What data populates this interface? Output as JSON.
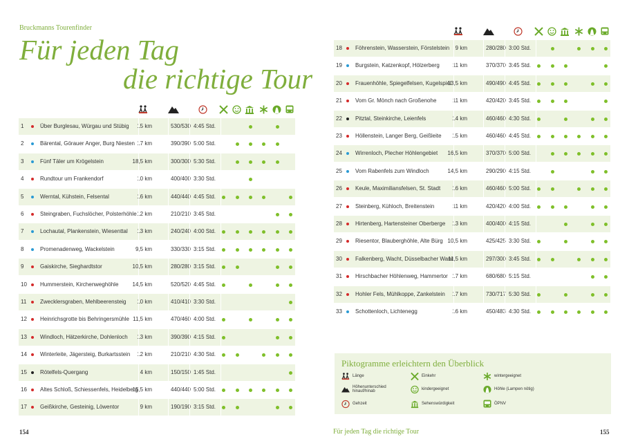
{
  "header": {
    "book": "Bruckmanns Tourenfinder",
    "title_line1": "Für jeden Tag",
    "title_line2": "die richtige Tour"
  },
  "icons": [
    "hiker-icon",
    "mountain-icon",
    "clock-icon",
    "cutlery-icon",
    "smiley-icon",
    "landmark-icon",
    "snowflake-icon",
    "cave-icon",
    "bus-icon"
  ],
  "colors": {
    "accent": "#7fae3c",
    "dot": "#7fbf2a",
    "red": "#d42a2a",
    "blue": "#2a9ad4",
    "black": "#222222",
    "row_alt": "#eef4e2"
  },
  "tours": [
    {
      "nr": "1",
      "color": "red",
      "name": "Über Burglesau, Würgau und Stübig",
      "len": "15 km",
      "hm": "530/530",
      "time": "4:45 Std.",
      "f": [
        0,
        0,
        1,
        0,
        1,
        0
      ]
    },
    {
      "nr": "2",
      "color": "blue",
      "name": "Bärental, Görauer Anger, Burg Niesten",
      "len": "17 km",
      "hm": "390/390",
      "time": "5:00 Std.",
      "f": [
        0,
        1,
        1,
        1,
        1,
        0
      ]
    },
    {
      "nr": "3",
      "color": "blue",
      "name": "Fünf Täler um Krögelstein",
      "len": "18,5 km",
      "hm": "300/300",
      "time": "5:30 Std.",
      "f": [
        0,
        1,
        1,
        1,
        1,
        0
      ]
    },
    {
      "nr": "4",
      "color": "red",
      "name": "Rundtour um Frankendorf",
      "len": "10 km",
      "hm": "400/400",
      "time": "3:30 Std.",
      "f": [
        0,
        0,
        1,
        0,
        0,
        0
      ]
    },
    {
      "nr": "5",
      "color": "blue",
      "name": "Werntal, Kühstein, Felsental",
      "len": "16 km",
      "hm": "440/440",
      "time": "4:45 Std.",
      "f": [
        1,
        1,
        1,
        1,
        0,
        1
      ]
    },
    {
      "nr": "6",
      "color": "red",
      "name": "Steingraben, Fuchslöcher, Polsterhöhle",
      "len": "12 km",
      "hm": "210/210",
      "time": "3:45 Std.",
      "f": [
        0,
        0,
        0,
        0,
        1,
        1
      ]
    },
    {
      "nr": "7",
      "color": "blue",
      "name": "Lochautal, Plankenstein, Wiesenttal",
      "len": "13 km",
      "hm": "240/240",
      "time": "4:00 Std.",
      "f": [
        1,
        1,
        1,
        1,
        1,
        1
      ]
    },
    {
      "nr": "8",
      "color": "blue",
      "name": "Promenadenweg, Wackelstein",
      "len": "9,5 km",
      "hm": "330/330",
      "time": "3:15 Std.",
      "f": [
        1,
        1,
        1,
        1,
        1,
        1
      ]
    },
    {
      "nr": "9",
      "color": "red",
      "name": "Gaiskirche, Sieghardtstor",
      "len": "10,5 km",
      "hm": "280/280",
      "time": "3:15 Std.",
      "f": [
        1,
        1,
        0,
        0,
        1,
        1
      ]
    },
    {
      "nr": "10",
      "color": "red",
      "name": "Hummerstein, Kirchenweghöhle",
      "len": "14,5 km",
      "hm": "520/520",
      "time": "4:45 Std.",
      "f": [
        1,
        0,
        1,
        0,
        1,
        1
      ]
    },
    {
      "nr": "11",
      "color": "red",
      "name": "Zwecklersgraben, Mehlbeerensteig",
      "len": "10 km",
      "hm": "410/410",
      "time": "3:30 Std.",
      "f": [
        0,
        0,
        0,
        0,
        0,
        1
      ]
    },
    {
      "nr": "12",
      "color": "red",
      "name": "Heinrichsgrotte bis Behringersmühle",
      "len": "11,5 km",
      "hm": "470/460",
      "time": "4:00 Std.",
      "f": [
        1,
        0,
        1,
        0,
        1,
        1
      ]
    },
    {
      "nr": "13",
      "color": "red",
      "name": "Windloch, Hätzerkirche, Dohlenloch",
      "len": "13 km",
      "hm": "390/390",
      "time": "4:15 Std.",
      "f": [
        1,
        0,
        0,
        0,
        1,
        1
      ]
    },
    {
      "nr": "14",
      "color": "red",
      "name": "Winterleite, Jägersteig, Burkartsstein",
      "len": "12 km",
      "hm": "210/210",
      "time": "4:30 Std.",
      "f": [
        1,
        1,
        0,
        1,
        1,
        1
      ]
    },
    {
      "nr": "15",
      "color": "black",
      "name": "Rötelfels-Quergang",
      "len": "4 km",
      "hm": "150/150",
      "time": "1:45 Std.",
      "f": [
        0,
        0,
        0,
        0,
        0,
        1
      ]
    },
    {
      "nr": "16",
      "color": "red",
      "name": "Altes Schloß, Schiessenfels, Heidelberg",
      "len": "15,5 km",
      "hm": "440/440",
      "time": "5:00 Std.",
      "f": [
        1,
        1,
        1,
        1,
        1,
        1
      ]
    },
    {
      "nr": "17",
      "color": "red",
      "name": "Geißkirche, Gesteinig, Löwentor",
      "len": "9 km",
      "hm": "190/190",
      "time": "3:15 Std.",
      "f": [
        1,
        1,
        0,
        0,
        1,
        1
      ]
    },
    {
      "nr": "18",
      "color": "red",
      "name": "Föhrenstein, Wasserstein, Förstelstein",
      "len": "9 km",
      "hm": "280/280",
      "time": "3:00 Std.",
      "f": [
        0,
        1,
        0,
        1,
        1,
        1
      ]
    },
    {
      "nr": "19",
      "color": "blue",
      "name": "Burgstein, Katzenkopf, Hölzerberg",
      "len": "11 km",
      "hm": "370/370",
      "time": "3:45 Std.",
      "f": [
        1,
        1,
        1,
        0,
        0,
        1
      ]
    },
    {
      "nr": "20",
      "color": "red",
      "name": "Frauenhöhle, Spiegelfelsen, Kugelspiel",
      "len": "13,5 km",
      "hm": "490/490",
      "time": "4:45 Std.",
      "f": [
        1,
        1,
        1,
        0,
        1,
        1
      ]
    },
    {
      "nr": "21",
      "color": "red",
      "name": "Vom Gr. Mönch nach Großenohe",
      "len": "11 km",
      "hm": "420/420",
      "time": "3:45 Std.",
      "f": [
        1,
        1,
        1,
        0,
        0,
        1
      ]
    },
    {
      "nr": "22",
      "color": "black",
      "name": "Pitztal, Steinkirche, Leienfels",
      "len": "14 km",
      "hm": "460/460",
      "time": "4:30 Std.",
      "f": [
        1,
        0,
        1,
        0,
        1,
        1
      ]
    },
    {
      "nr": "23",
      "color": "red",
      "name": "Höllenstein, Langer Berg, Geißleite",
      "len": "15 km",
      "hm": "460/460",
      "time": "4:45 Std.",
      "f": [
        1,
        1,
        1,
        1,
        1,
        1
      ]
    },
    {
      "nr": "24",
      "color": "blue",
      "name": "Wirrenloch, Plecher Höhlengebiet",
      "len": "16,5 km",
      "hm": "370/370",
      "time": "5:00 Std.",
      "f": [
        0,
        1,
        1,
        1,
        1,
        1
      ]
    },
    {
      "nr": "25",
      "color": "blue",
      "name": "Vom Rabenfels zum Windloch",
      "len": "14,5 km",
      "hm": "290/290",
      "time": "4:15 Std.",
      "f": [
        0,
        1,
        0,
        0,
        1,
        1
      ]
    },
    {
      "nr": "26",
      "color": "red",
      "name": "Keule, Maximiliansfelsen, St. Stadt",
      "len": "16 km",
      "hm": "460/460",
      "time": "5:00 Std.",
      "f": [
        1,
        1,
        0,
        1,
        1,
        1
      ]
    },
    {
      "nr": "27",
      "color": "red",
      "name": "Steinberg, Kühloch, Breitenstein",
      "len": "11 km",
      "hm": "420/420",
      "time": "4:00 Std.",
      "f": [
        1,
        1,
        1,
        0,
        1,
        1
      ]
    },
    {
      "nr": "28",
      "color": "red",
      "name": "Hirtenberg, Hartensteiner Oberberge",
      "len": "13 km",
      "hm": "400/400",
      "time": "4:15 Std.",
      "f": [
        0,
        0,
        1,
        0,
        1,
        1
      ]
    },
    {
      "nr": "29",
      "color": "red",
      "name": "Riesentor, Blauberghöhle, Alte Bürg",
      "len": "10,5 km",
      "hm": "425/425",
      "time": "3:30 Std.",
      "f": [
        1,
        0,
        1,
        0,
        1,
        1
      ]
    },
    {
      "nr": "30",
      "color": "red",
      "name": "Falkenberg, Wacht, Düsselbacher Wand",
      "len": "11,5 km",
      "hm": "297/300",
      "time": "3:45 Std.",
      "f": [
        1,
        1,
        0,
        1,
        1,
        1
      ]
    },
    {
      "nr": "31",
      "color": "red",
      "name": "Hirschbacher Höhlenweg, Hammertor",
      "len": "17 km",
      "hm": "680/680",
      "time": "5:15 Std.",
      "f": [
        0,
        0,
        0,
        0,
        1,
        1
      ]
    },
    {
      "nr": "32",
      "color": "red",
      "name": "Hohler Fels, Mühlkoppe, Zankelstein",
      "len": "17 km",
      "hm": "730/717",
      "time": "5:30 Std.",
      "f": [
        1,
        0,
        1,
        0,
        1,
        1
      ]
    },
    {
      "nr": "33",
      "color": "blue",
      "name": "Schottenloch, Lichtenegg",
      "len": "16 km",
      "hm": "450/483",
      "time": "4:30 Std.",
      "f": [
        1,
        1,
        1,
        1,
        1,
        1
      ]
    }
  ],
  "legend": {
    "title": "Piktogramme erleichtern den Überblick",
    "items": [
      {
        "icon": "hiker-icon",
        "label": "Länge"
      },
      {
        "icon": "mountain-icon",
        "label": "Höhenunterschied hinauf/hinab"
      },
      {
        "icon": "clock-icon",
        "label": "Gehzeit"
      },
      {
        "icon": "cutlery-icon",
        "label": "Einkehr"
      },
      {
        "icon": "smiley-icon",
        "label": "kindergeeignet"
      },
      {
        "icon": "landmark-icon",
        "label": "Sehenswürdigkeit"
      },
      {
        "icon": "snowflake-icon",
        "label": "wintergeeignet"
      },
      {
        "icon": "cave-icon",
        "label": "Höhle (Lampen nötig)"
      },
      {
        "icon": "bus-icon",
        "label": "ÖPNV"
      }
    ]
  },
  "footer": {
    "left_page": "154",
    "center": "Für jeden Tag die richtige Tour",
    "right_page": "155"
  }
}
